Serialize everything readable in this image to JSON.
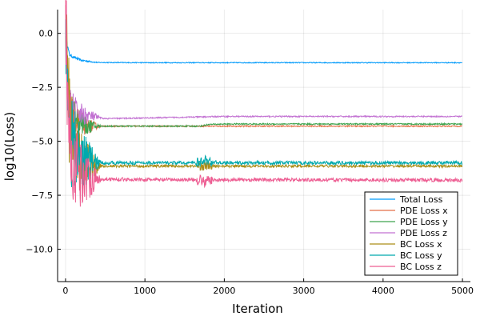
{
  "chart_data": {
    "type": "line",
    "title": "",
    "xlabel": "Iteration",
    "ylabel": "log10(Loss)",
    "xlim": [
      -100,
      5100
    ],
    "ylim": [
      -11.5,
      1.1
    ],
    "x_ticks": [
      0,
      1000,
      2000,
      3000,
      4000,
      5000
    ],
    "x_tick_labels": [
      "0",
      "1000",
      "2000",
      "3000",
      "4000",
      "5000"
    ],
    "y_ticks": [
      0.0,
      -2.5,
      -5.0,
      -7.5,
      -10.0
    ],
    "y_tick_labels": [
      "0.0",
      "−2.5",
      "−5.0",
      "−7.5",
      "−10.0"
    ],
    "grid": true,
    "legend_position": "bottom-right",
    "x_max": 5000,
    "series": [
      {
        "name": "Total Loss",
        "color": "#009AFA",
        "noise": 0.02,
        "points": [
          [
            1,
            0.7
          ],
          [
            20,
            -0.5
          ],
          [
            50,
            -1.0
          ],
          [
            100,
            -1.1
          ],
          [
            200,
            -1.25
          ],
          [
            300,
            -1.3
          ],
          [
            400,
            -1.35
          ],
          [
            1000,
            -1.36
          ],
          [
            5000,
            -1.36
          ]
        ]
      },
      {
        "name": "PDE Loss x",
        "color": "#E36F47",
        "noise": 0.03,
        "points": [
          [
            1,
            0.5
          ],
          [
            30,
            -2.5
          ],
          [
            60,
            -3.5
          ],
          [
            100,
            -3.8
          ],
          [
            150,
            -4.0
          ],
          [
            200,
            -4.1
          ],
          [
            250,
            -4.3
          ],
          [
            400,
            -4.3
          ],
          [
            1000,
            -4.3
          ],
          [
            2000,
            -4.3
          ],
          [
            3000,
            -4.3
          ],
          [
            5000,
            -4.3
          ]
        ]
      },
      {
        "name": "PDE Loss y",
        "color": "#3EA44E",
        "noise": 0.03,
        "points": [
          [
            1,
            0.5
          ],
          [
            30,
            -2.8
          ],
          [
            60,
            -3.5
          ],
          [
            100,
            -3.6
          ],
          [
            150,
            -3.9
          ],
          [
            200,
            -4.1
          ],
          [
            250,
            -4.3
          ],
          [
            400,
            -4.3
          ],
          [
            1600,
            -4.3
          ],
          [
            1700,
            -4.3
          ],
          [
            1800,
            -4.22
          ],
          [
            2000,
            -4.2
          ],
          [
            3000,
            -4.2
          ],
          [
            5000,
            -4.2
          ]
        ]
      },
      {
        "name": "PDE Loss z",
        "color": "#C271D2",
        "noise": 0.03,
        "points": [
          [
            1,
            0.6
          ],
          [
            30,
            -3.0
          ],
          [
            60,
            -3.4
          ],
          [
            100,
            -3.5
          ],
          [
            150,
            -3.7
          ],
          [
            250,
            -3.8
          ],
          [
            500,
            -3.95
          ],
          [
            1000,
            -3.92
          ],
          [
            2000,
            -3.85
          ],
          [
            3000,
            -3.85
          ],
          [
            5000,
            -3.85
          ]
        ]
      },
      {
        "name": "BC Loss x",
        "color": "#AC8D18",
        "noise": 0.06,
        "points": [
          [
            1,
            0.5
          ],
          [
            50,
            -4.0
          ],
          [
            100,
            -5.0
          ],
          [
            200,
            -5.8
          ],
          [
            300,
            -6.1
          ],
          [
            400,
            -6.15
          ],
          [
            1000,
            -6.15
          ],
          [
            2000,
            -6.15
          ],
          [
            5000,
            -6.15
          ]
        ]
      },
      {
        "name": "BC Loss y",
        "color": "#00A9AD",
        "noise": 0.08,
        "points": [
          [
            1,
            0.5
          ],
          [
            50,
            -4.5
          ],
          [
            100,
            -5.5
          ],
          [
            200,
            -5.8
          ],
          [
            300,
            -5.9
          ],
          [
            400,
            -6.0
          ],
          [
            1000,
            -6.0
          ],
          [
            1700,
            -6.0
          ],
          [
            1750,
            -5.85
          ],
          [
            1800,
            -5.95
          ],
          [
            2000,
            -6.0
          ],
          [
            5000,
            -6.0
          ]
        ]
      },
      {
        "name": "BC Loss z",
        "color": "#ED5D92",
        "noise": 0.08,
        "points": [
          [
            1,
            0.5
          ],
          [
            50,
            -5.0
          ],
          [
            100,
            -6.0
          ],
          [
            200,
            -6.5
          ],
          [
            300,
            -6.7
          ],
          [
            400,
            -6.75
          ],
          [
            1000,
            -6.78
          ],
          [
            1700,
            -6.78
          ],
          [
            1750,
            -6.9
          ],
          [
            1800,
            -6.8
          ],
          [
            2000,
            -6.78
          ],
          [
            5000,
            -6.8
          ]
        ]
      }
    ]
  }
}
